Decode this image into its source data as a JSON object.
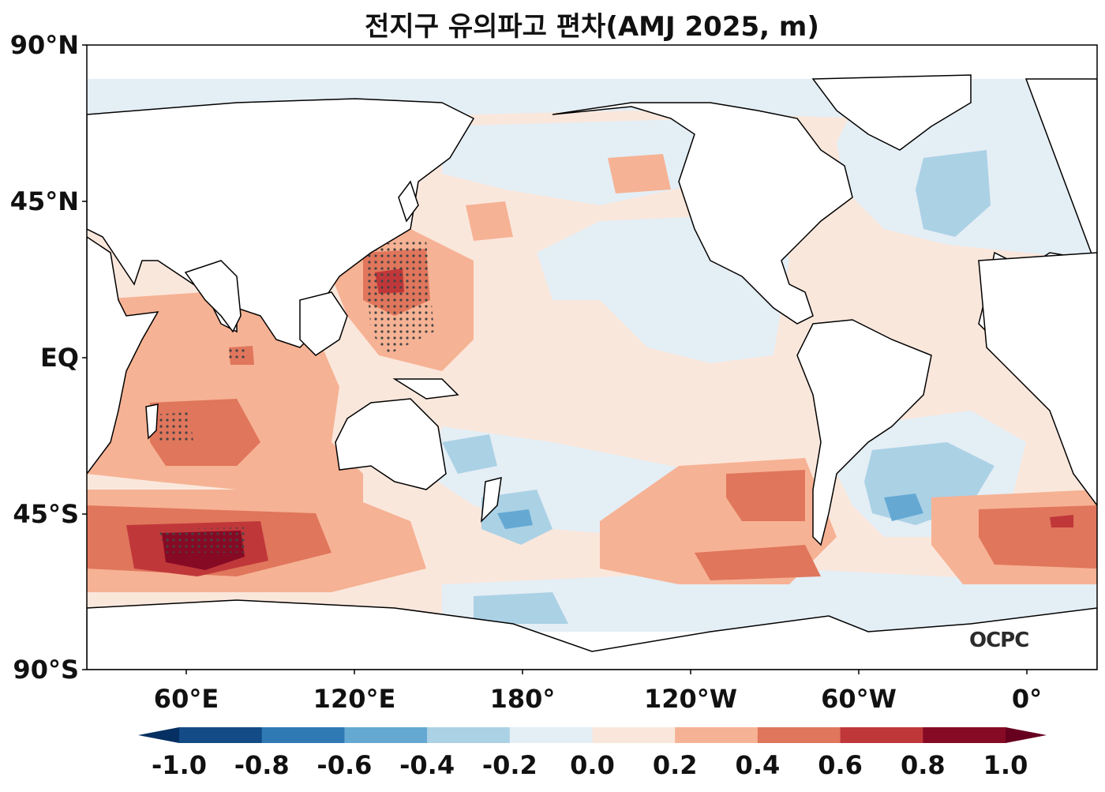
{
  "title": "전지구 유의파고 편차(AMJ 2025, m)",
  "lat_labels": [
    "90°N",
    "45°N",
    "EQ",
    "45°S",
    "90°S"
  ],
  "lon_labels": [
    "60°E",
    "120°E",
    "180°",
    "120°W",
    "60°W",
    "0°"
  ],
  "colorbar": {
    "tick_labels": [
      "-1.0",
      "-0.8",
      "-0.6",
      "-0.4",
      "-0.2",
      "0.0",
      "0.2",
      "0.4",
      "0.6",
      "0.8",
      "1.0"
    ],
    "colors": [
      "#053061",
      "#134b86",
      "#2f79b5",
      "#65a9d3",
      "#abd1e5",
      "#e4eef5",
      "#fae7dc",
      "#f6b294",
      "#e0765c",
      "#c0373a",
      "#870a24",
      "#67001f"
    ]
  },
  "logo": "OCPC",
  "colors": {
    "land": "#ffffff",
    "coast": "#000000",
    "no_data": "#ffffff"
  }
}
